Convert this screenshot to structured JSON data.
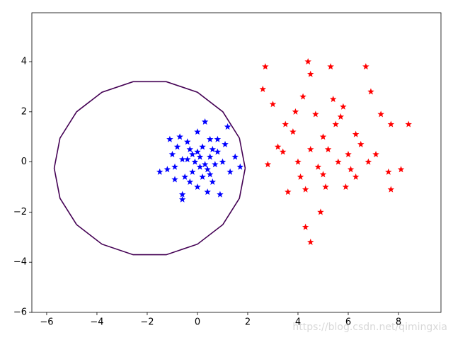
{
  "chart_data": {
    "type": "scatter",
    "xlim": [
      -6.59,
      9.69
    ],
    "ylim": [
      -6,
      5.95
    ],
    "xticks": [
      {
        "value": -6,
        "label": "−6"
      },
      {
        "value": -4,
        "label": "−4"
      },
      {
        "value": -2,
        "label": "−2"
      },
      0,
      2,
      4,
      6,
      8
    ],
    "yticks": [
      {
        "value": -6,
        "label": "−6"
      },
      {
        "value": -4,
        "label": "−4"
      },
      {
        "value": -2,
        "label": "−2"
      },
      0,
      2,
      4
    ],
    "grid": false,
    "series": [
      {
        "color": "#0000ff",
        "marker": "star",
        "x": [
          0.1,
          -0.3,
          0.4,
          -0.6,
          0.8,
          0.2,
          -0.9,
          0.5,
          -0.2,
          1.2,
          -0.7,
          0.3,
          -1.2,
          1.0,
          0.0,
          -0.6,
          0.6,
          1.5,
          -1.5,
          0.9,
          -0.4,
          0.2,
          -0.1,
          0.5,
          -0.8,
          0.7,
          -0.3,
          1.3,
          -1.0,
          0.0,
          0.4,
          -0.5,
          0.8,
          -1.1,
          0.1,
          1.7,
          -0.9,
          0.6,
          -0.2,
          0.3,
          -0.6,
          1.1,
          0.0,
          -0.4,
          0.5
        ],
        "values": [
          0.2,
          0.5,
          -0.3,
          0.1,
          0.4,
          -0.6,
          -0.2,
          0.9,
          -0.4,
          1.4,
          1.0,
          1.6,
          -0.3,
          0.0,
          -1.0,
          -1.5,
          -0.8,
          0.2,
          -0.4,
          -1.3,
          0.8,
          0.6,
          0.0,
          0.2,
          0.6,
          -0.1,
          -0.8,
          -0.4,
          0.3,
          1.2,
          -1.2,
          -0.6,
          0.9,
          0.9,
          -0.2,
          -0.2,
          -0.7,
          0.5,
          0.3,
          -0.1,
          -1.3,
          0.7,
          0.4,
          0.1,
          -0.5
        ]
      },
      {
        "color": "#ff0000",
        "marker": "star",
        "x": [
          5.0,
          4.5,
          5.5,
          4.0,
          6.0,
          4.4,
          5.3,
          6.7,
          2.7,
          4.5,
          2.6,
          6.9,
          3.0,
          4.2,
          5.8,
          7.3,
          8.4,
          7.7,
          3.5,
          6.3,
          3.2,
          2.8,
          4.8,
          5.6,
          6.8,
          7.6,
          8.1,
          3.6,
          4.3,
          5.1,
          5.9,
          6.3,
          7.7,
          4.3,
          4.5,
          4.9,
          3.4,
          5.2,
          6.5,
          4.7,
          5.7,
          3.8,
          6.1,
          5.4,
          4.1,
          7.1,
          5.0,
          3.9
        ],
        "values": [
          1.0,
          0.5,
          1.5,
          0.0,
          0.3,
          4.0,
          3.8,
          3.8,
          3.8,
          3.5,
          2.9,
          2.8,
          2.3,
          2.6,
          2.2,
          1.9,
          1.5,
          1.5,
          1.5,
          1.1,
          0.6,
          -0.1,
          -0.2,
          0.0,
          0.0,
          -0.4,
          -0.3,
          -1.2,
          -1.1,
          -1.0,
          -1.0,
          -0.6,
          -1.1,
          -2.6,
          -3.2,
          -2.0,
          0.4,
          0.5,
          0.7,
          1.9,
          1.8,
          1.2,
          -0.3,
          2.5,
          -0.6,
          0.3,
          -0.5,
          2.0
        ]
      },
      {
        "color": "#440154",
        "marker": "line",
        "x": [
          1.9,
          1.67,
          1.01,
          0.0,
          -1.24,
          -2.56,
          -3.8,
          -4.81,
          -5.47,
          -5.7,
          -5.47,
          -4.81,
          -3.8,
          -2.56,
          -1.24,
          0.0,
          1.01,
          1.67,
          1.9
        ],
        "values": [
          -0.25,
          0.95,
          2.0,
          2.78,
          3.2,
          3.2,
          2.78,
          2.0,
          0.95,
          -0.25,
          -1.45,
          -2.5,
          -3.28,
          -3.7,
          -3.7,
          -3.28,
          -2.5,
          -1.45,
          -0.25
        ]
      }
    ]
  },
  "watermark": "https://blog.csdn.net/qimingxia"
}
